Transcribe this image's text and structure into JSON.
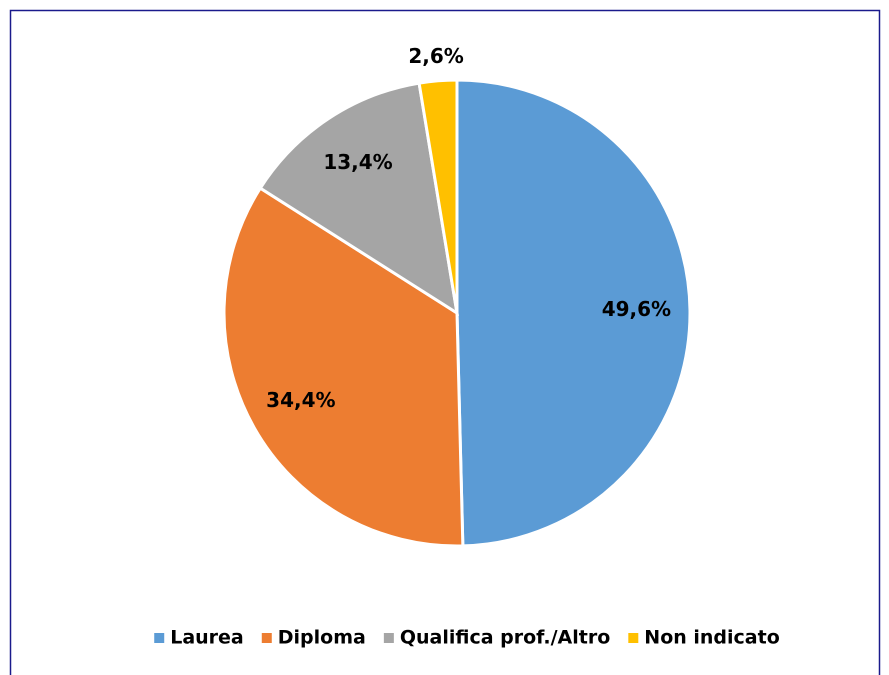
{
  "chart_data": {
    "type": "pie",
    "categories": [
      "Laurea",
      "Diploma",
      "Qualifica prof./Altro",
      "Non indicato"
    ],
    "values": [
      49.6,
      34.4,
      13.4,
      2.6
    ],
    "value_labels": [
      "49,6%",
      "34,4%",
      "13,4%",
      "2,6%"
    ],
    "colors": [
      "#5b9bd5",
      "#ed7d31",
      "#a5a5a5",
      "#ffc000"
    ],
    "legend": "bottom"
  }
}
